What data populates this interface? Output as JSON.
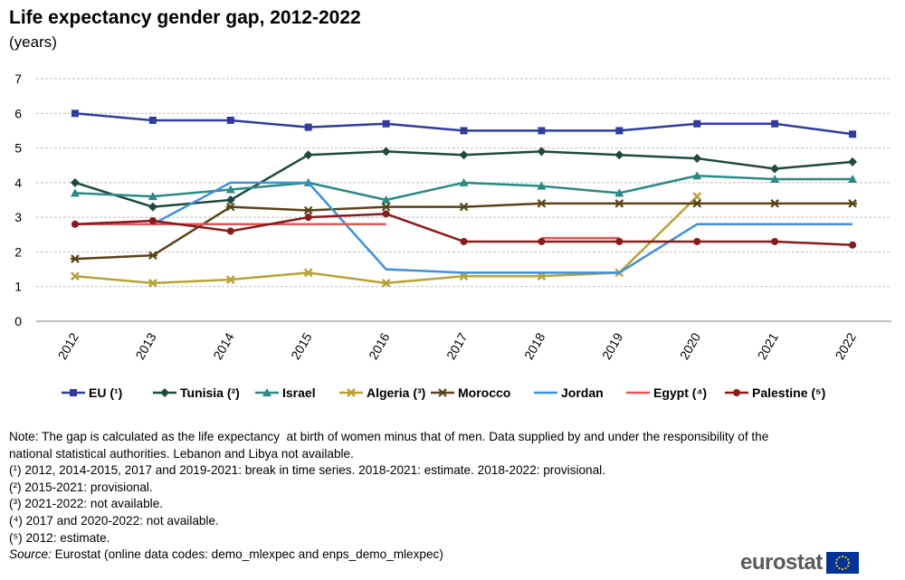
{
  "title": "Life expectancy  gender gap, 2012-2022",
  "subtitle": "(years)",
  "chart_data": {
    "type": "line",
    "categories": [
      "2012",
      "2013",
      "2014",
      "2015",
      "2016",
      "2017",
      "2018",
      "2019",
      "2020",
      "2021",
      "2022"
    ],
    "ylim": [
      0,
      7
    ],
    "yticks": [
      0,
      1,
      2,
      3,
      4,
      5,
      6,
      7
    ],
    "grid": true,
    "legend_position": "bottom",
    "series": [
      {
        "name": "EU (¹)",
        "color": "#2E3D9E",
        "marker": "square",
        "values": [
          6.0,
          5.8,
          5.8,
          5.6,
          5.7,
          5.5,
          5.5,
          5.5,
          5.7,
          5.7,
          5.4
        ]
      },
      {
        "name": "Tunisia (²)",
        "color": "#1E4B3E",
        "marker": "diamond",
        "values": [
          4.0,
          3.3,
          3.5,
          4.8,
          4.9,
          4.8,
          4.9,
          4.8,
          4.7,
          4.4,
          4.6
        ]
      },
      {
        "name": "Israel",
        "color": "#2A8A84",
        "marker": "triangle",
        "values": [
          3.7,
          3.6,
          3.8,
          4.0,
          3.5,
          4.0,
          3.9,
          3.7,
          4.2,
          4.1,
          4.1
        ]
      },
      {
        "name": "Algeria (³)",
        "color": "#B8A235",
        "marker": "x",
        "values": [
          1.3,
          1.1,
          1.2,
          1.4,
          1.1,
          1.3,
          1.3,
          1.4,
          3.6,
          null,
          null
        ]
      },
      {
        "name": "Morocco",
        "color": "#5A4318",
        "marker": "star",
        "values": [
          1.8,
          1.9,
          3.3,
          3.2,
          3.3,
          3.3,
          3.4,
          3.4,
          3.4,
          3.4,
          3.4
        ]
      },
      {
        "name": "Jordan",
        "color": "#3D8FE0",
        "marker": "dash",
        "values": [
          2.8,
          2.8,
          4.0,
          4.0,
          1.5,
          1.4,
          1.4,
          1.4,
          2.8,
          2.8,
          2.8
        ]
      },
      {
        "name": "Egypt (⁴)",
        "color": "#E05555",
        "marker": "dash",
        "values": [
          2.8,
          2.8,
          2.8,
          2.8,
          2.8,
          null,
          2.4,
          2.4,
          null,
          null,
          null
        ]
      },
      {
        "name": "Palestine (⁵)",
        "color": "#8B1A1A",
        "marker": "circle",
        "values": [
          2.8,
          2.9,
          2.6,
          3.0,
          3.1,
          2.3,
          2.3,
          2.3,
          2.3,
          2.3,
          2.2
        ]
      }
    ]
  },
  "notes": [
    "Note: The gap is calculated as the life expectancy  at birth of women minus that of men. Data supplied by and under the responsibility of the national statistical authorities. Lebanon and Libya not available.",
    "(¹) 2012, 2014-2015, 2017 and 2019-2021: break in time series. 2018-2021: estimate. 2018-2022: provisional.",
    "(²) 2015-2021: provisional.",
    "(³) 2021-2022: not available.",
    "(⁴) 2017 and 2020-2022: not available.",
    "(⁵) 2012: estimate."
  ],
  "source": {
    "label": "Source:",
    "text": " Eurostat (online data codes: demo_mlexpec and enps_demo_mlexpec)"
  },
  "logo_text": "eurostat",
  "colors": {
    "gridline": "#BFBFBF",
    "axis": "#7F7F7F",
    "eu_flag": "#003399",
    "eu_star": "#FFCC00"
  }
}
